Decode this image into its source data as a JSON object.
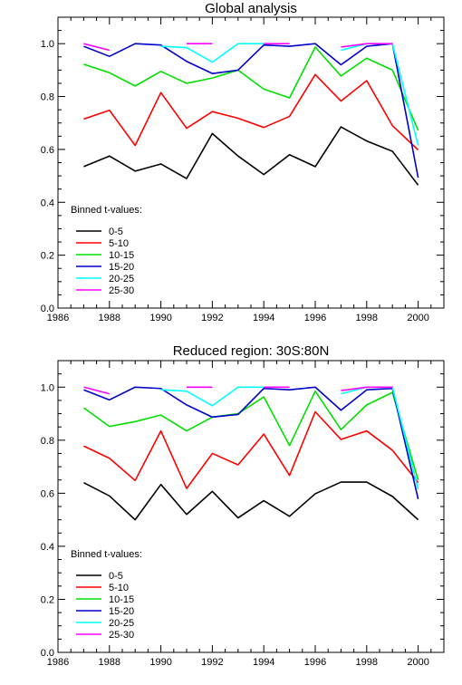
{
  "chart_data": [
    {
      "type": "line",
      "title": "Global analysis",
      "xlabel": "",
      "ylabel": "",
      "xlim": [
        1986,
        2001
      ],
      "ylim": [
        0.0,
        1.1
      ],
      "xticks": [
        1986,
        1988,
        1990,
        1992,
        1994,
        1996,
        1998,
        2000
      ],
      "xtick_labels": [
        "1986",
        "1988",
        "1990",
        "1992",
        "1994",
        "1996",
        "1998",
        "2000"
      ],
      "yticks": [
        0.0,
        0.2,
        0.4,
        0.6,
        0.8,
        1.0
      ],
      "ytick_labels": [
        "0.0",
        "0.2",
        "0.4",
        "0.6",
        "0.8",
        "1.0"
      ],
      "legend_title": "Binned t-values:",
      "legend_position": "lower-left",
      "x": [
        1987,
        1988,
        1989,
        1990,
        1991,
        1992,
        1993,
        1994,
        1995,
        1996,
        1997,
        1998,
        1999,
        2000
      ],
      "series": [
        {
          "name": "0-5",
          "color": "#000000",
          "values": [
            0.535,
            0.575,
            0.518,
            0.545,
            0.49,
            0.66,
            0.575,
            0.505,
            0.58,
            0.535,
            0.685,
            0.632,
            0.593,
            0.465
          ]
        },
        {
          "name": "5-10",
          "color": "#ff0000",
          "values": [
            0.715,
            0.748,
            0.615,
            0.815,
            0.68,
            0.743,
            0.718,
            0.683,
            0.725,
            0.883,
            0.783,
            0.86,
            0.69,
            0.598
          ]
        },
        {
          "name": "10-15",
          "color": "#00e000",
          "values": [
            0.922,
            0.89,
            0.84,
            0.895,
            0.85,
            0.87,
            0.9,
            0.828,
            0.795,
            0.987,
            0.878,
            0.945,
            0.9,
            0.672
          ]
        },
        {
          "name": "15-20",
          "color": "#0000cc",
          "values": [
            0.99,
            0.952,
            1.0,
            0.995,
            0.933,
            0.887,
            0.9,
            0.995,
            0.99,
            1.0,
            0.92,
            0.99,
            1.0,
            0.493
          ]
        },
        {
          "name": "20-25",
          "color": "#00ffff",
          "values": [
            0.985,
            null,
            null,
            0.99,
            0.985,
            0.93,
            1.0,
            1.0,
            null,
            null,
            0.975,
            1.0,
            1.0,
            0.615
          ]
        },
        {
          "name": "25-30",
          "color": "#ff00ff",
          "values": [
            1.0,
            0.975,
            null,
            null,
            1.0,
            1.0,
            null,
            1.0,
            1.0,
            null,
            0.987,
            1.0,
            1.0,
            null
          ]
        }
      ]
    },
    {
      "type": "line",
      "title": "Reduced region: 30S:80N",
      "xlabel": "",
      "ylabel": "",
      "xlim": [
        1986,
        2001
      ],
      "ylim": [
        0.0,
        1.1
      ],
      "xticks": [
        1986,
        1988,
        1990,
        1992,
        1994,
        1996,
        1998,
        2000
      ],
      "xtick_labels": [
        "1986",
        "1988",
        "1990",
        "1992",
        "1994",
        "1996",
        "1998",
        "2000"
      ],
      "yticks": [
        0.0,
        0.2,
        0.4,
        0.6,
        0.8,
        1.0
      ],
      "ytick_labels": [
        "0.0",
        "0.2",
        "0.4",
        "0.6",
        "0.8",
        "1.0"
      ],
      "legend_title": "Binned t-values:",
      "legend_position": "lower-left",
      "x": [
        1987,
        1988,
        1989,
        1990,
        1991,
        1992,
        1993,
        1994,
        1995,
        1996,
        1997,
        1998,
        1999,
        2000
      ],
      "series": [
        {
          "name": "0-5",
          "color": "#000000",
          "values": [
            0.64,
            0.59,
            0.5,
            0.633,
            0.52,
            0.607,
            0.507,
            0.572,
            0.513,
            0.598,
            0.642,
            0.642,
            0.588,
            0.5
          ]
        },
        {
          "name": "5-10",
          "color": "#ff0000",
          "values": [
            0.778,
            0.732,
            0.648,
            0.835,
            0.618,
            0.75,
            0.707,
            0.823,
            0.667,
            0.907,
            0.803,
            0.835,
            0.762,
            0.64
          ]
        },
        {
          "name": "10-15",
          "color": "#00e000",
          "values": [
            0.922,
            0.852,
            0.87,
            0.895,
            0.835,
            0.887,
            0.9,
            0.963,
            0.78,
            0.985,
            0.84,
            0.933,
            0.98,
            0.65
          ]
        },
        {
          "name": "15-20",
          "color": "#0000cc",
          "values": [
            0.99,
            0.952,
            1.0,
            0.995,
            0.933,
            0.887,
            0.897,
            0.995,
            0.99,
            1.0,
            0.913,
            0.99,
            0.995,
            0.578
          ]
        },
        {
          "name": "20-25",
          "color": "#00ffff",
          "values": [
            0.985,
            null,
            null,
            0.99,
            0.985,
            0.93,
            1.0,
            1.0,
            null,
            null,
            0.975,
            1.0,
            1.0,
            0.615
          ]
        },
        {
          "name": "25-30",
          "color": "#ff00ff",
          "values": [
            1.0,
            0.975,
            null,
            null,
            1.0,
            1.0,
            null,
            1.0,
            1.0,
            null,
            0.987,
            1.0,
            1.0,
            null
          ]
        }
      ]
    }
  ]
}
